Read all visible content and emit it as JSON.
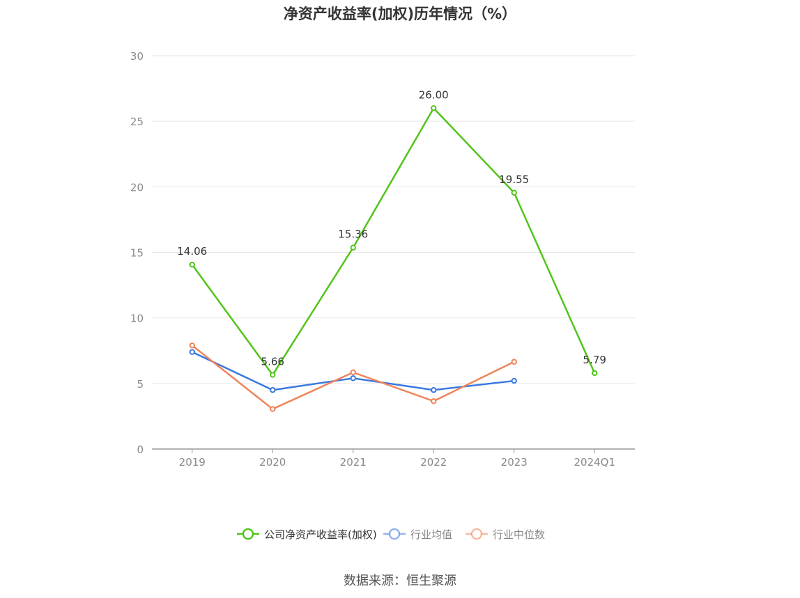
{
  "chart_data": {
    "type": "line",
    "title": "净资产收益率(加权)历年情况（%）",
    "categories": [
      "2019",
      "2020",
      "2021",
      "2022",
      "2023",
      "2024Q1"
    ],
    "ylim": [
      0,
      30
    ],
    "yticks": [
      0,
      5,
      10,
      15,
      20,
      25,
      30
    ],
    "grid": true,
    "legend_position": "bottom",
    "series": [
      {
        "name": "公司净资产收益率(加权)",
        "color": "#52c41a",
        "values": [
          14.06,
          5.66,
          15.36,
          26.0,
          19.55,
          5.79
        ],
        "labels": [
          "14.06",
          "5.66",
          "15.36",
          "26.00",
          "19.55",
          "5.79"
        ]
      },
      {
        "name": "行业均值",
        "color": "#3a78e0",
        "values": [
          7.4,
          4.5,
          5.4,
          4.5,
          5.2,
          null
        ]
      },
      {
        "name": "行业中位数",
        "color": "#f0845a",
        "values": [
          7.9,
          3.05,
          5.85,
          3.65,
          6.65,
          null
        ]
      }
    ]
  },
  "source": "数据来源：恒生聚源"
}
